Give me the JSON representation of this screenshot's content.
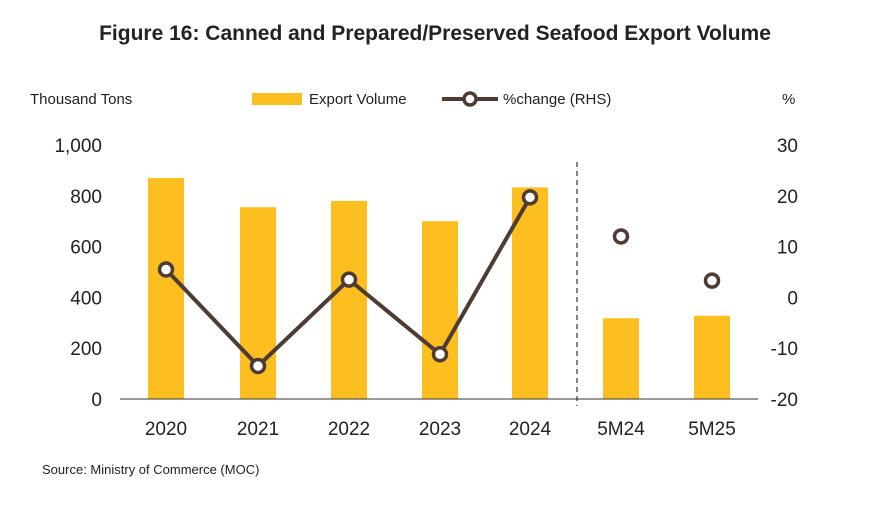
{
  "title": "Figure 16: Canned and Prepared/Preserved Seafood Export Volume",
  "source": "Source: Ministry of Commerce (MOC)",
  "colors": {
    "bar": "#FDBF1F",
    "line": "#4E3B33",
    "axis": "#333333"
  },
  "chart_data": {
    "type": "bar",
    "categories": [
      "2020",
      "2021",
      "2022",
      "2023",
      "2024",
      "5M24",
      "5M25"
    ],
    "series": [
      {
        "name": "Export Volume",
        "type": "bar",
        "axis": "left",
        "values": [
          870,
          755,
          780,
          700,
          833,
          318,
          328
        ]
      },
      {
        "name": "%change (RHS)",
        "type": "line",
        "axis": "right",
        "values": [
          5.5,
          -13.5,
          3.5,
          -11.2,
          19.7,
          12.0,
          3.3
        ],
        "connected_upto": "2024"
      }
    ],
    "ylabel_left": "Thousand Tons",
    "ylabel_right": "%",
    "ylim_left": [
      0,
      1000
    ],
    "ylim_right": [
      -20,
      30
    ],
    "yticks_left": [
      "0",
      "200",
      "400",
      "600",
      "800",
      "1,000"
    ],
    "yticks_right": [
      "-20",
      "-10",
      "0",
      "10",
      "20",
      "30"
    ],
    "divider_after": "2024",
    "legend_position": "top"
  }
}
